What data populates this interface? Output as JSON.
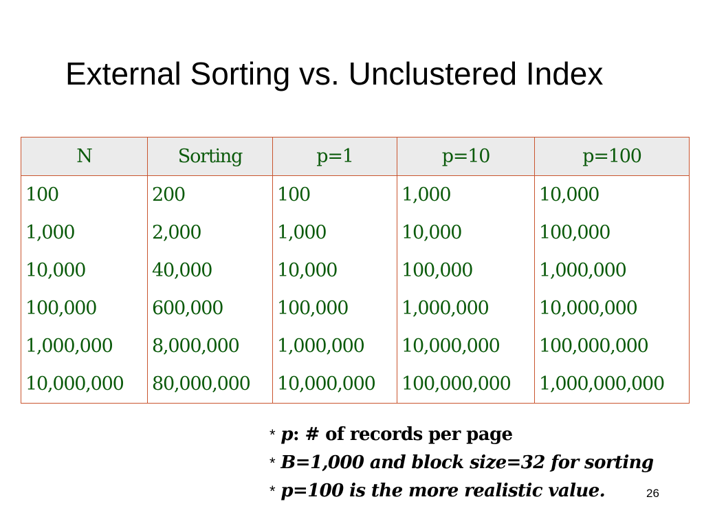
{
  "title": "External Sorting vs. Unclustered Index",
  "table": {
    "headers": [
      "N",
      "Sorting",
      "p=1",
      "p=10",
      "p=100"
    ],
    "rows": [
      [
        "100",
        "200",
        "100",
        "1,000",
        "10,000"
      ],
      [
        "1,000",
        "2,000",
        "1,000",
        "10,000",
        "100,000"
      ],
      [
        "10,000",
        "40,000",
        "10,000",
        "100,000",
        "1,000,000"
      ],
      [
        "100,000",
        "600,000",
        "100,000",
        "1,000,000",
        "10,000,000"
      ],
      [
        "1,000,000",
        "8,000,000",
        "1,000,000",
        "10,000,000",
        "100,000,000"
      ],
      [
        "10,000,000",
        "80,000,000",
        "10,000,000",
        "100,000,000",
        "1,000,000,000"
      ]
    ]
  },
  "notes": {
    "star": "*",
    "line1_var": "p",
    "line1_rest": ": # of records per page",
    "line2": "B=1,000 and block size=32 for sorting",
    "line3": "p=100 is the more realistic value."
  },
  "page_number": "26",
  "colors": {
    "text": "#0b5a0b",
    "border": "#c9542e",
    "header_bg": "#ebebeb"
  }
}
